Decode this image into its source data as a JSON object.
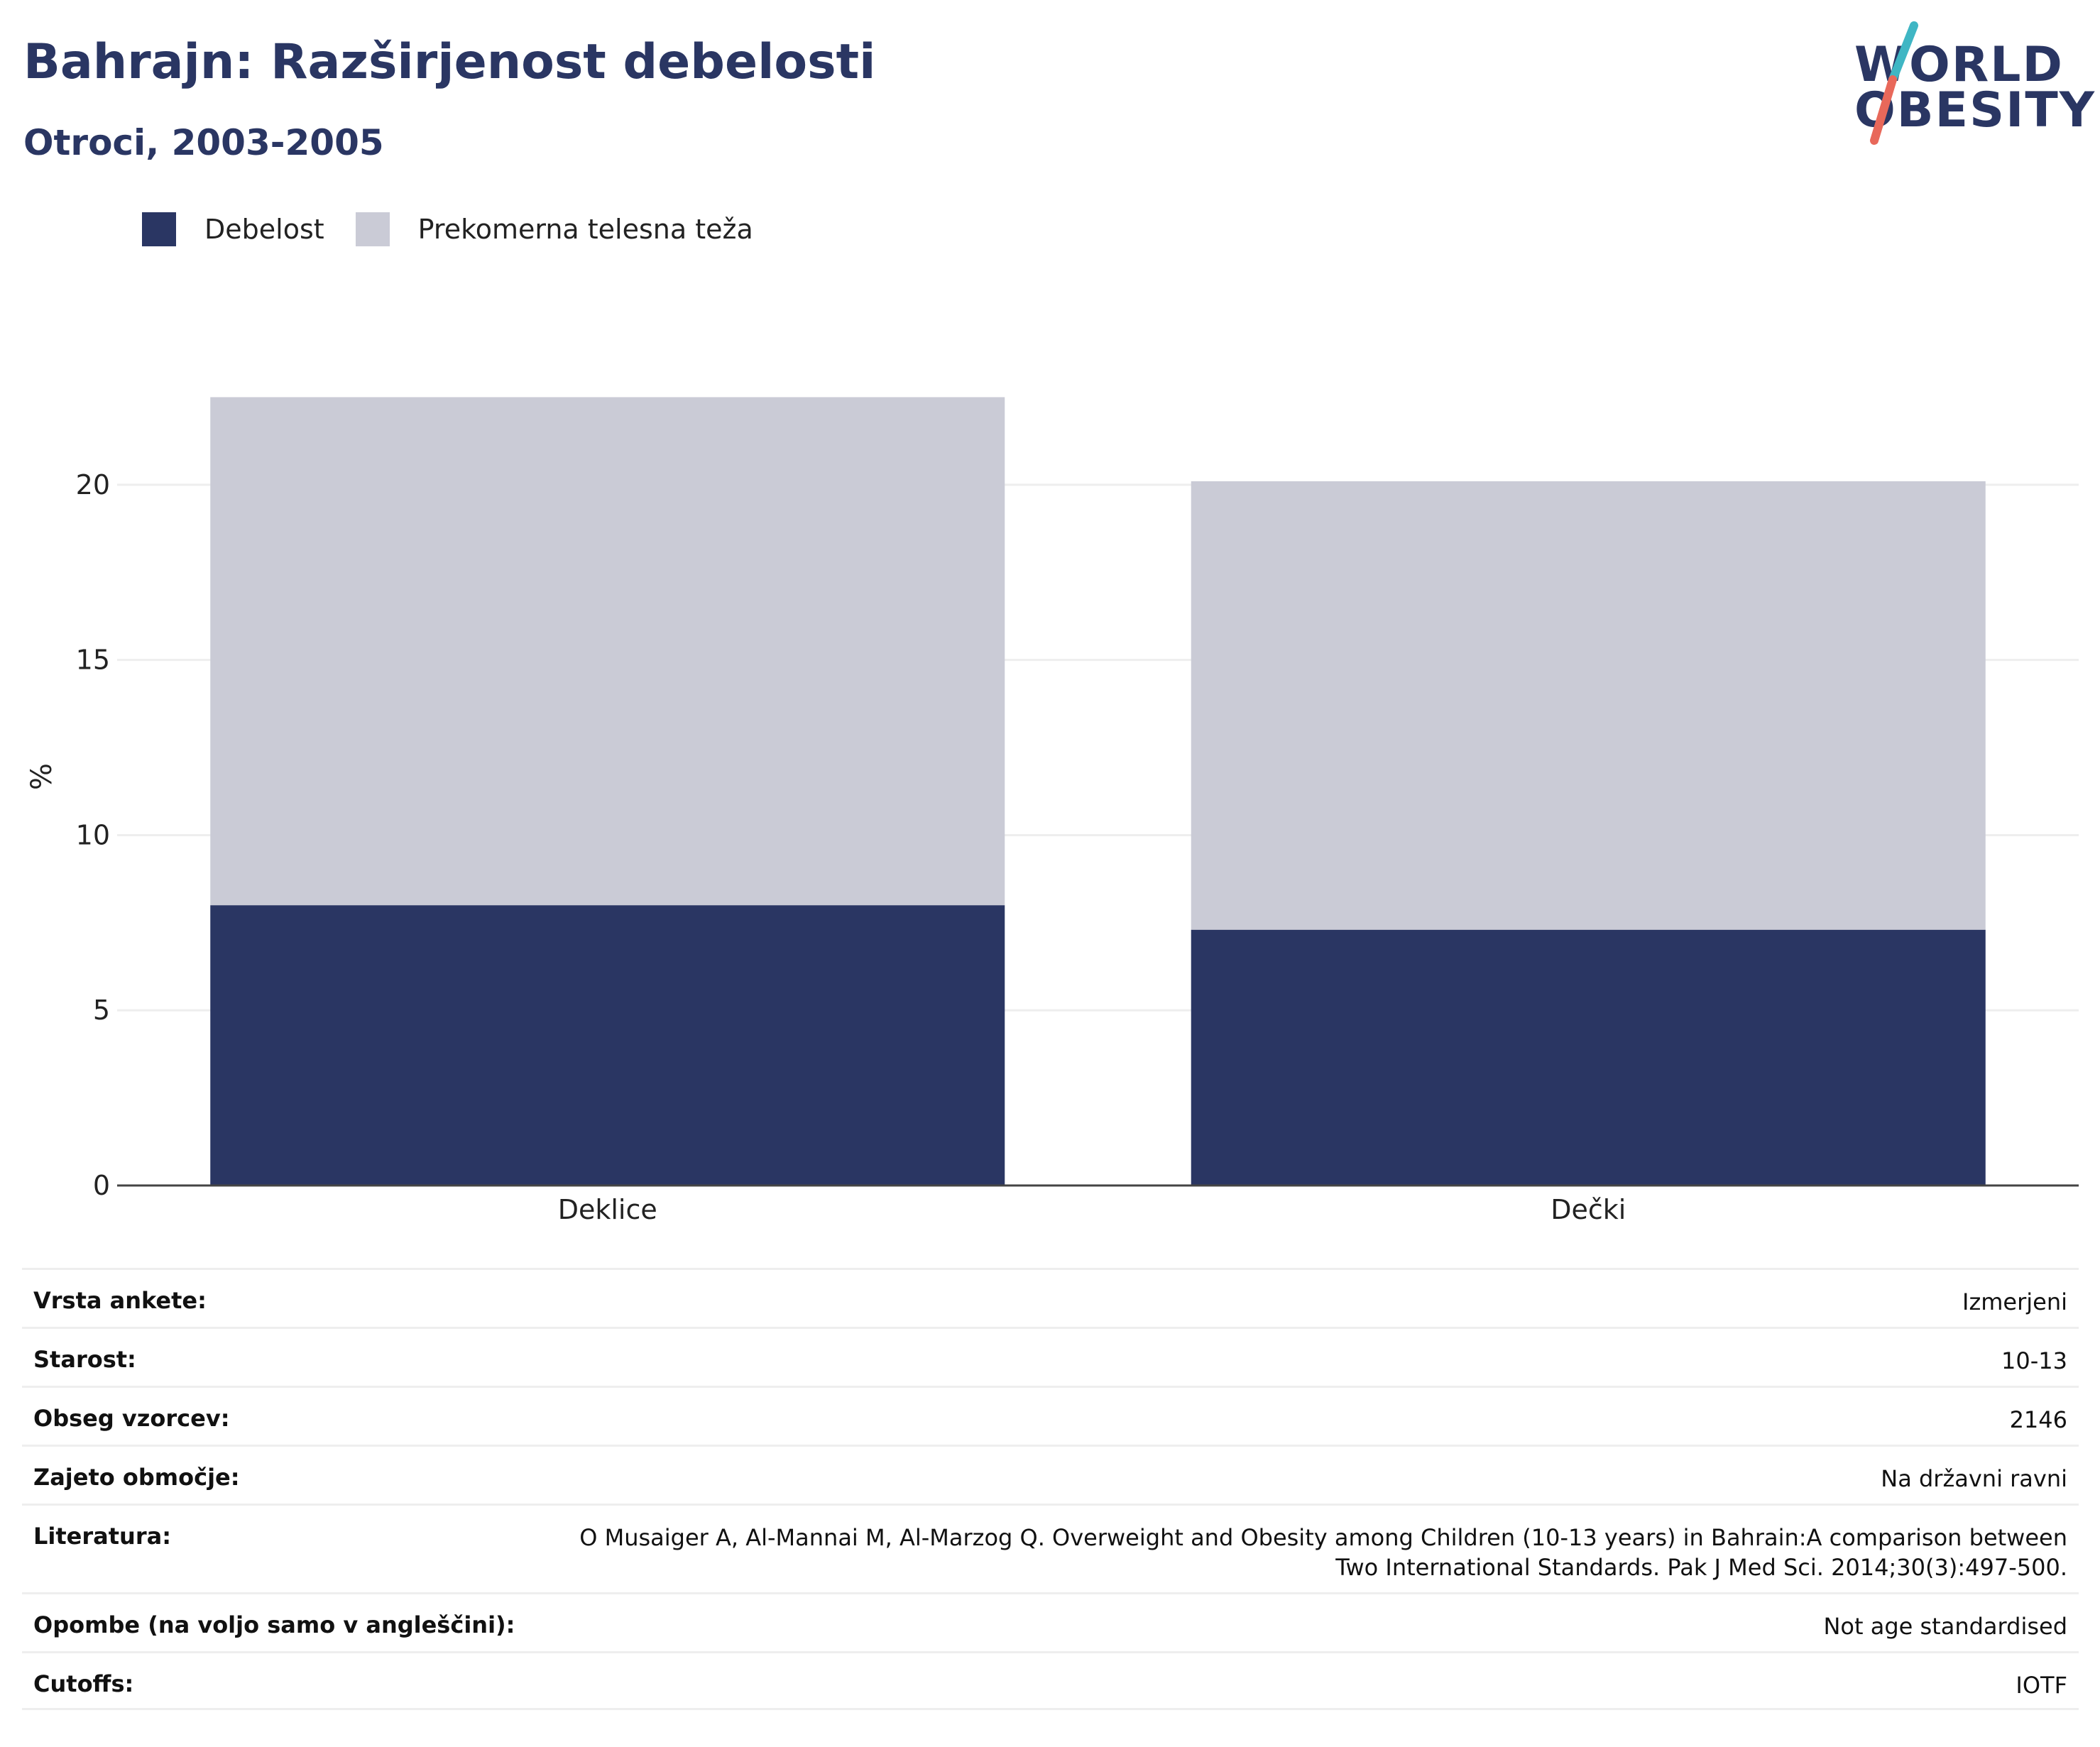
{
  "header": {
    "title": "Bahrajn: Razširjenost debelosti",
    "subtitle": "Otroci, 2003-2005"
  },
  "logo": {
    "line1": "WORLD",
    "line2": "OBESITY",
    "colors": {
      "text": "#2a3663",
      "slash_top": "#3fb6c4",
      "slash_bottom": "#e8685a"
    }
  },
  "colors": {
    "obesity": "#2a3663",
    "overweight": "#cacbd6",
    "grid": "#eeeeee",
    "axis": "#444444"
  },
  "chart_data": {
    "type": "bar",
    "stacked": true,
    "categories": [
      "Deklice",
      "Dečki"
    ],
    "series": [
      {
        "name": "Debelost",
        "values": [
          8.0,
          7.3
        ],
        "color": "#2a3663"
      },
      {
        "name": "Prekomerna telesna teža",
        "values": [
          14.5,
          12.8
        ],
        "color": "#cacbd6"
      }
    ],
    "ylabel": "%",
    "xlabel": "",
    "ylim": [
      0,
      23.3
    ],
    "yticks": [
      0,
      5,
      10,
      15,
      20
    ],
    "grid": true,
    "legend": "top-left"
  },
  "metadata": [
    {
      "key": "Vrsta ankete:",
      "value": "Izmerjeni"
    },
    {
      "key": "Starost:",
      "value": "10-13"
    },
    {
      "key": "Obseg vzorcev:",
      "value": "2146"
    },
    {
      "key": "Zajeto območje:",
      "value": "Na državni ravni"
    },
    {
      "key": "Literatura:",
      "value": "O Musaiger A, Al-Mannai M, Al-Marzog Q. Overweight and Obesity among Children (10-13 years) in Bahrain:A comparison between Two International Standards. Pak J Med Sci. 2014;30(3):497-500."
    },
    {
      "key": "Opombe (na voljo samo v angleščini):",
      "value": "Not age standardised"
    },
    {
      "key": "Cutoffs:",
      "value": "IOTF"
    }
  ]
}
